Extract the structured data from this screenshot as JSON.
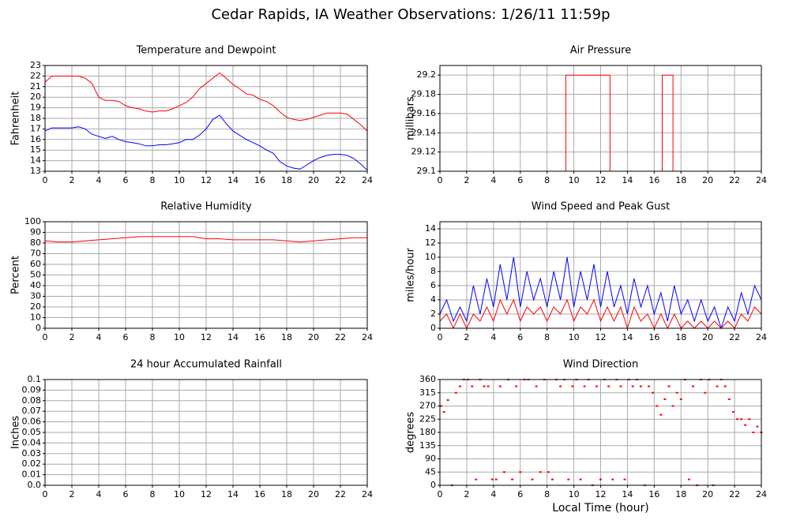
{
  "title": "Cedar Rapids, IA Weather Observations: 1/26/11 11:59p",
  "chart_data": [
    {
      "type": "line",
      "title": "Temperature and Dewpoint",
      "ylabel": "Fahrenheit",
      "x": [
        0,
        0.5,
        1,
        1.5,
        2,
        2.5,
        3,
        3.5,
        4,
        4.5,
        5,
        5.5,
        6,
        6.5,
        7,
        7.5,
        8,
        8.5,
        9,
        9.5,
        10,
        10.5,
        11,
        11.5,
        12,
        12.5,
        13,
        13.5,
        14,
        14.5,
        15,
        15.5,
        16,
        16.5,
        17,
        17.5,
        18,
        18.5,
        19,
        19.5,
        20,
        20.5,
        21,
        21.5,
        22,
        22.5,
        23,
        23.5,
        24
      ],
      "series": [
        {
          "name": "Temperature",
          "color": "#ff0000",
          "values": [
            21.4,
            22.0,
            22.0,
            22.0,
            22.0,
            22.0,
            21.8,
            21.3,
            20.0,
            19.7,
            19.7,
            19.6,
            19.2,
            19.0,
            18.9,
            18.7,
            18.6,
            18.7,
            18.7,
            18.9,
            19.2,
            19.5,
            20.0,
            20.8,
            21.3,
            21.8,
            22.3,
            21.8,
            21.2,
            20.8,
            20.3,
            20.2,
            19.8,
            19.6,
            19.2,
            18.6,
            18.1,
            17.9,
            17.8,
            17.9,
            18.1,
            18.3,
            18.5,
            18.5,
            18.5,
            18.4,
            17.9,
            17.4,
            16.8
          ]
        },
        {
          "name": "Dewpoint",
          "color": "#0000ff",
          "values": [
            16.8,
            17.1,
            17.1,
            17.1,
            17.1,
            17.2,
            17.0,
            16.5,
            16.3,
            16.1,
            16.3,
            16.0,
            15.8,
            15.7,
            15.6,
            15.4,
            15.4,
            15.5,
            15.5,
            15.6,
            15.7,
            16.0,
            16.0,
            16.4,
            17.0,
            17.9,
            18.3,
            17.5,
            16.8,
            16.4,
            16.0,
            15.7,
            15.4,
            15.0,
            14.7,
            13.9,
            13.5,
            13.3,
            13.2,
            13.6,
            14.0,
            14.3,
            14.5,
            14.6,
            14.6,
            14.5,
            14.2,
            13.7,
            13.1
          ]
        }
      ],
      "xlim": [
        0,
        24
      ],
      "xticks": [
        0,
        2,
        4,
        6,
        8,
        10,
        12,
        14,
        16,
        18,
        20,
        22,
        24
      ],
      "ylim": [
        13,
        23
      ],
      "yticks": [
        13,
        14,
        15,
        16,
        17,
        18,
        19,
        20,
        21,
        22,
        23
      ],
      "grid": true
    },
    {
      "type": "line",
      "title": "Air Pressure",
      "ylabel": "millibars",
      "x": [
        0,
        9.4,
        9.4,
        12.7,
        12.7,
        16.6,
        16.6,
        17.4,
        17.4,
        24
      ],
      "series": [
        {
          "name": "Pressure",
          "color": "#ff0000",
          "values": [
            29.1,
            29.1,
            29.2,
            29.2,
            29.1,
            29.1,
            29.2,
            29.2,
            29.1,
            29.1
          ]
        }
      ],
      "xlim": [
        0,
        24
      ],
      "xticks": [
        0,
        2,
        4,
        6,
        8,
        10,
        12,
        14,
        16,
        18,
        20,
        22,
        24
      ],
      "ylim": [
        29.1,
        29.21
      ],
      "yticks": [
        29.1,
        29.12,
        29.14,
        29.16,
        29.18,
        29.2
      ],
      "grid": true
    },
    {
      "type": "line",
      "title": "Relative Humidity",
      "ylabel": "Percent",
      "x": [
        0,
        1,
        2,
        3,
        4,
        5,
        6,
        7,
        8,
        9,
        10,
        11,
        11.5,
        12,
        13,
        14,
        15,
        16,
        17,
        18,
        19,
        20,
        21,
        22,
        23,
        24
      ],
      "series": [
        {
          "name": "Humidity",
          "color": "#ff0000",
          "values": [
            82,
            81,
            81,
            82,
            83,
            84,
            85,
            86,
            86,
            86,
            86,
            86,
            85,
            84,
            84,
            83,
            83,
            83,
            83,
            82,
            81,
            82,
            83,
            84,
            85,
            85
          ]
        }
      ],
      "xlim": [
        0,
        24
      ],
      "xticks": [
        0,
        2,
        4,
        6,
        8,
        10,
        12,
        14,
        16,
        18,
        20,
        22,
        24
      ],
      "ylim": [
        0,
        100
      ],
      "yticks": [
        0,
        10,
        20,
        30,
        40,
        50,
        60,
        70,
        80,
        90,
        100
      ],
      "grid": true
    },
    {
      "type": "line",
      "title": "Wind Speed and Peak Gust",
      "ylabel": "miles/hour",
      "x": [
        0,
        0.5,
        1,
        1.5,
        2,
        2.5,
        3,
        3.5,
        4,
        4.5,
        5,
        5.5,
        6,
        6.5,
        7,
        7.5,
        8,
        8.5,
        9,
        9.5,
        10,
        10.5,
        11,
        11.5,
        12,
        12.5,
        13,
        13.5,
        14,
        14.5,
        15,
        15.5,
        16,
        16.5,
        17,
        17.5,
        18,
        18.5,
        19,
        19.5,
        20,
        20.5,
        21,
        21.5,
        22,
        22.5,
        23,
        23.5,
        24
      ],
      "series": [
        {
          "name": "Peak Gust",
          "color": "#0000ff",
          "values": [
            2,
            4,
            1,
            3,
            1,
            6,
            2,
            7,
            3,
            9,
            4,
            10,
            3,
            8,
            4,
            7,
            3,
            8,
            4,
            10,
            3,
            8,
            4,
            9,
            3,
            8,
            3,
            6,
            2,
            7,
            3,
            6,
            2,
            5,
            1,
            6,
            2,
            4,
            1,
            4,
            1,
            3,
            0,
            3,
            1,
            5,
            2,
            6,
            4
          ]
        },
        {
          "name": "Wind Speed",
          "color": "#ff0000",
          "values": [
            1,
            2,
            0,
            2,
            0,
            2,
            1,
            3,
            1,
            4,
            2,
            4,
            1,
            3,
            2,
            3,
            1,
            3,
            2,
            4,
            1,
            3,
            2,
            4,
            1,
            3,
            1,
            3,
            0,
            3,
            1,
            2,
            0,
            2,
            0,
            2,
            0,
            1,
            0,
            1,
            0,
            1,
            0,
            1,
            0,
            2,
            1,
            3,
            2
          ]
        }
      ],
      "xlim": [
        0,
        24
      ],
      "xticks": [
        0,
        2,
        4,
        6,
        8,
        10,
        12,
        14,
        16,
        18,
        20,
        22,
        24
      ],
      "ylim": [
        0,
        15
      ],
      "yticks": [
        0,
        2,
        4,
        6,
        8,
        10,
        12,
        14
      ],
      "grid": true
    },
    {
      "type": "line",
      "title": "24 hour Accumulated Rainfall",
      "ylabel": "Inches",
      "x": [
        0,
        24
      ],
      "series": [
        {
          "name": "Rainfall",
          "color": "#ff0000",
          "values": [
            0,
            0
          ]
        }
      ],
      "xlim": [
        0,
        24
      ],
      "xticks": [
        0,
        2,
        4,
        6,
        8,
        10,
        12,
        14,
        16,
        18,
        20,
        22,
        24
      ],
      "ylim": [
        0,
        0.1
      ],
      "yticks": [
        {
          "value": 0,
          "label": "0.0"
        },
        0.01,
        0.02,
        0.03,
        0.04,
        0.05,
        0.06,
        0.07,
        0.08,
        0.09,
        0.1
      ],
      "grid": true
    },
    {
      "type": "scatter",
      "title": "Wind Direction",
      "ylabel": "degrees",
      "xlabel": "Local Time (hour)",
      "x": [
        0.1,
        0.3,
        0.6,
        0.9,
        1.2,
        1.5,
        1.8,
        2.1,
        2.4,
        2.7,
        3.0,
        3.3,
        3.6,
        3.9,
        4.2,
        4.5,
        4.8,
        5.1,
        5.4,
        5.7,
        6.0,
        6.3,
        6.6,
        6.9,
        7.2,
        7.5,
        7.8,
        8.1,
        8.4,
        8.7,
        9.0,
        9.3,
        9.6,
        9.9,
        10.2,
        10.5,
        10.8,
        11.1,
        11.4,
        11.7,
        12.0,
        12.3,
        12.6,
        12.9,
        13.2,
        13.5,
        13.8,
        14.1,
        14.4,
        14.7,
        15.0,
        15.3,
        15.6,
        15.9,
        16.2,
        16.5,
        16.8,
        17.1,
        17.4,
        17.7,
        18.0,
        18.3,
        18.6,
        18.9,
        19.2,
        19.5,
        19.8,
        20.1,
        20.4,
        20.7,
        21.0,
        21.3,
        21.6,
        21.9,
        22.2,
        22.5,
        22.8,
        23.1,
        23.4,
        23.7,
        24.0
      ],
      "series": [
        {
          "name": "Direction",
          "color": "#ff0000",
          "values": [
            270,
            250,
            290,
            0,
            315,
            337,
            360,
            360,
            337,
            20,
            360,
            337,
            337,
            20,
            20,
            337,
            45,
            360,
            20,
            337,
            45,
            360,
            360,
            20,
            337,
            45,
            360,
            45,
            20,
            360,
            337,
            360,
            20,
            337,
            360,
            20,
            337,
            360,
            0,
            337,
            20,
            360,
            337,
            20,
            360,
            337,
            20,
            360,
            337,
            360,
            337,
            0,
            337,
            315,
            270,
            240,
            293,
            337,
            270,
            315,
            293,
            360,
            20,
            337,
            0,
            360,
            315,
            360,
            0,
            337,
            360,
            337,
            293,
            250,
            225,
            225,
            205,
            225,
            180,
            200,
            180
          ]
        }
      ],
      "xlim": [
        0,
        24
      ],
      "xticks": [
        0,
        2,
        4,
        6,
        8,
        10,
        12,
        14,
        16,
        18,
        20,
        22,
        24
      ],
      "ylim": [
        0,
        360
      ],
      "yticks": [
        0,
        45,
        90,
        135,
        180,
        225,
        270,
        315,
        360
      ],
      "grid": true
    }
  ]
}
